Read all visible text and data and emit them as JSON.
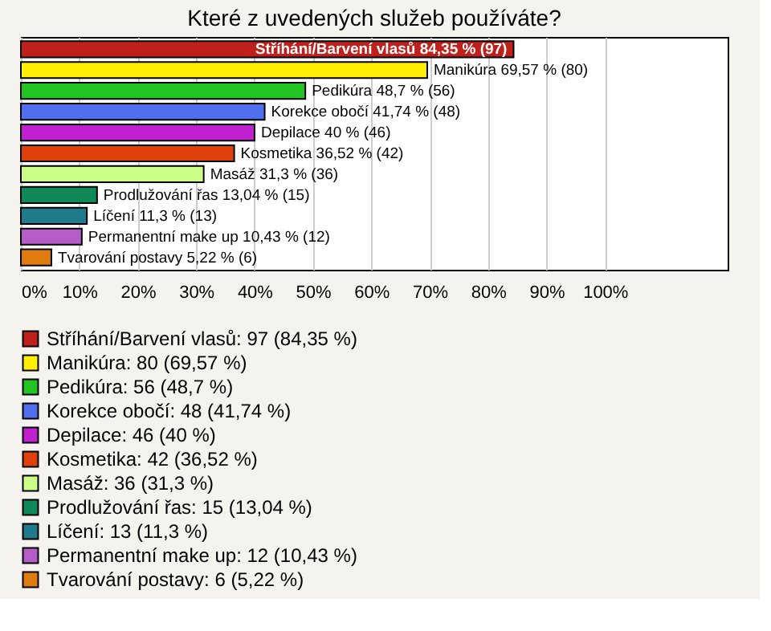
{
  "chart_data": {
    "type": "bar",
    "orientation": "horizontal",
    "title": "Které z uvedených služeb používáte?",
    "categories": [
      "Stříhání/Barvení vlasů",
      "Manikúra",
      "Pedikúra",
      "Korekce obočí",
      "Depilace",
      "Kosmetika",
      "Masáž",
      "Prodlužování řas",
      "Líčení",
      "Permanentní make up",
      "Tvarování postavy"
    ],
    "series": [
      {
        "name": "Stříhání/Barvení vlasů: 97 (84,35 %)",
        "color": "#c0201c",
        "values": [
          84.35,
          null,
          null,
          null,
          null,
          null,
          null,
          null,
          null,
          null,
          null
        ],
        "value_labels": [
          "84,35 % (97)",
          null,
          null,
          null,
          null,
          null,
          null,
          null,
          null,
          null,
          null
        ]
      },
      {
        "name": "Manikúra: 80 (69,57 %)",
        "color": "#ffee00",
        "values": [
          null,
          69.57,
          null,
          null,
          null,
          null,
          null,
          null,
          null,
          null,
          null
        ],
        "value_labels": [
          null,
          "69,57 % (80)",
          null,
          null,
          null,
          null,
          null,
          null,
          null,
          null,
          null
        ]
      },
      {
        "name": "Pedikúra: 56 (48,7 %)",
        "color": "#22c322",
        "values": [
          null,
          null,
          48.7,
          null,
          null,
          null,
          null,
          null,
          null,
          null,
          null
        ],
        "value_labels": [
          null,
          null,
          "48,7 % (56)",
          null,
          null,
          null,
          null,
          null,
          null,
          null,
          null
        ]
      },
      {
        "name": "Korekce obočí: 48 (41,74 %)",
        "color": "#4f6fef",
        "values": [
          null,
          null,
          null,
          41.74,
          null,
          null,
          null,
          null,
          null,
          null,
          null
        ],
        "value_labels": [
          null,
          null,
          null,
          "41,74 % (48)",
          null,
          null,
          null,
          null,
          null,
          null,
          null
        ]
      },
      {
        "name": "Depilace: 46 (40 %)",
        "color": "#c020d0",
        "values": [
          null,
          null,
          null,
          null,
          40,
          null,
          null,
          null,
          null,
          null,
          null
        ],
        "value_labels": [
          null,
          null,
          null,
          null,
          "40 % (46)",
          null,
          null,
          null,
          null,
          null,
          null
        ]
      },
      {
        "name": "Kosmetika: 42 (36,52 %)",
        "color": "#e0400c",
        "values": [
          null,
          null,
          null,
          null,
          null,
          36.52,
          null,
          null,
          null,
          null,
          null
        ],
        "value_labels": [
          null,
          null,
          null,
          null,
          null,
          "36,52 % (42)",
          null,
          null,
          null,
          null,
          null
        ]
      },
      {
        "name": "Masáž: 36 (31,3 %)",
        "color": "#ccff88",
        "values": [
          null,
          null,
          null,
          null,
          null,
          null,
          31.3,
          null,
          null,
          null,
          null
        ],
        "value_labels": [
          null,
          null,
          null,
          null,
          null,
          null,
          "31,3 % (36)",
          null,
          null,
          null,
          null
        ]
      },
      {
        "name": "Prodlužování řas: 15 (13,04 %)",
        "color": "#11885a",
        "values": [
          null,
          null,
          null,
          null,
          null,
          null,
          null,
          13.04,
          null,
          null,
          null
        ],
        "value_labels": [
          null,
          null,
          null,
          null,
          null,
          null,
          null,
          "13,04 % (15)",
          null,
          null,
          null
        ]
      },
      {
        "name": "Líčení: 13 (11,3 %)",
        "color": "#1f7a8c",
        "values": [
          null,
          null,
          null,
          null,
          null,
          null,
          null,
          null,
          11.3,
          null,
          null
        ],
        "value_labels": [
          null,
          null,
          null,
          null,
          null,
          null,
          null,
          null,
          "11,3 % (13)",
          null,
          null
        ]
      },
      {
        "name": "Permanentní make up: 12 (10,43 %)",
        "color": "#b55cc8",
        "values": [
          null,
          null,
          null,
          null,
          null,
          null,
          null,
          null,
          null,
          10.43,
          null
        ],
        "value_labels": [
          null,
          null,
          null,
          null,
          null,
          null,
          null,
          null,
          null,
          "10,43 % (12)",
          null
        ]
      },
      {
        "name": "Tvarování postavy: 6 (5,22 %)",
        "color": "#e07b10",
        "values": [
          null,
          null,
          null,
          null,
          null,
          null,
          null,
          null,
          null,
          null,
          5.22
        ],
        "value_labels": [
          null,
          null,
          null,
          null,
          null,
          null,
          null,
          null,
          null,
          null,
          "5,22 % (6)"
        ]
      }
    ],
    "xlim": [
      0,
      121
    ],
    "xticks": [
      {
        "value": 0,
        "label": "0%"
      },
      {
        "value": 10,
        "label": "10%"
      },
      {
        "value": 20,
        "label": "20%"
      },
      {
        "value": 30,
        "label": "30%"
      },
      {
        "value": 40,
        "label": "40%"
      },
      {
        "value": 50,
        "label": "50%"
      },
      {
        "value": 60,
        "label": "60%"
      },
      {
        "value": 70,
        "label": "70%"
      },
      {
        "value": 80,
        "label": "80%"
      },
      {
        "value": 90,
        "label": "90%"
      },
      {
        "value": 100,
        "label": "100%"
      }
    ],
    "grid": "x",
    "tick_labels": "x",
    "legend": "bottom"
  }
}
